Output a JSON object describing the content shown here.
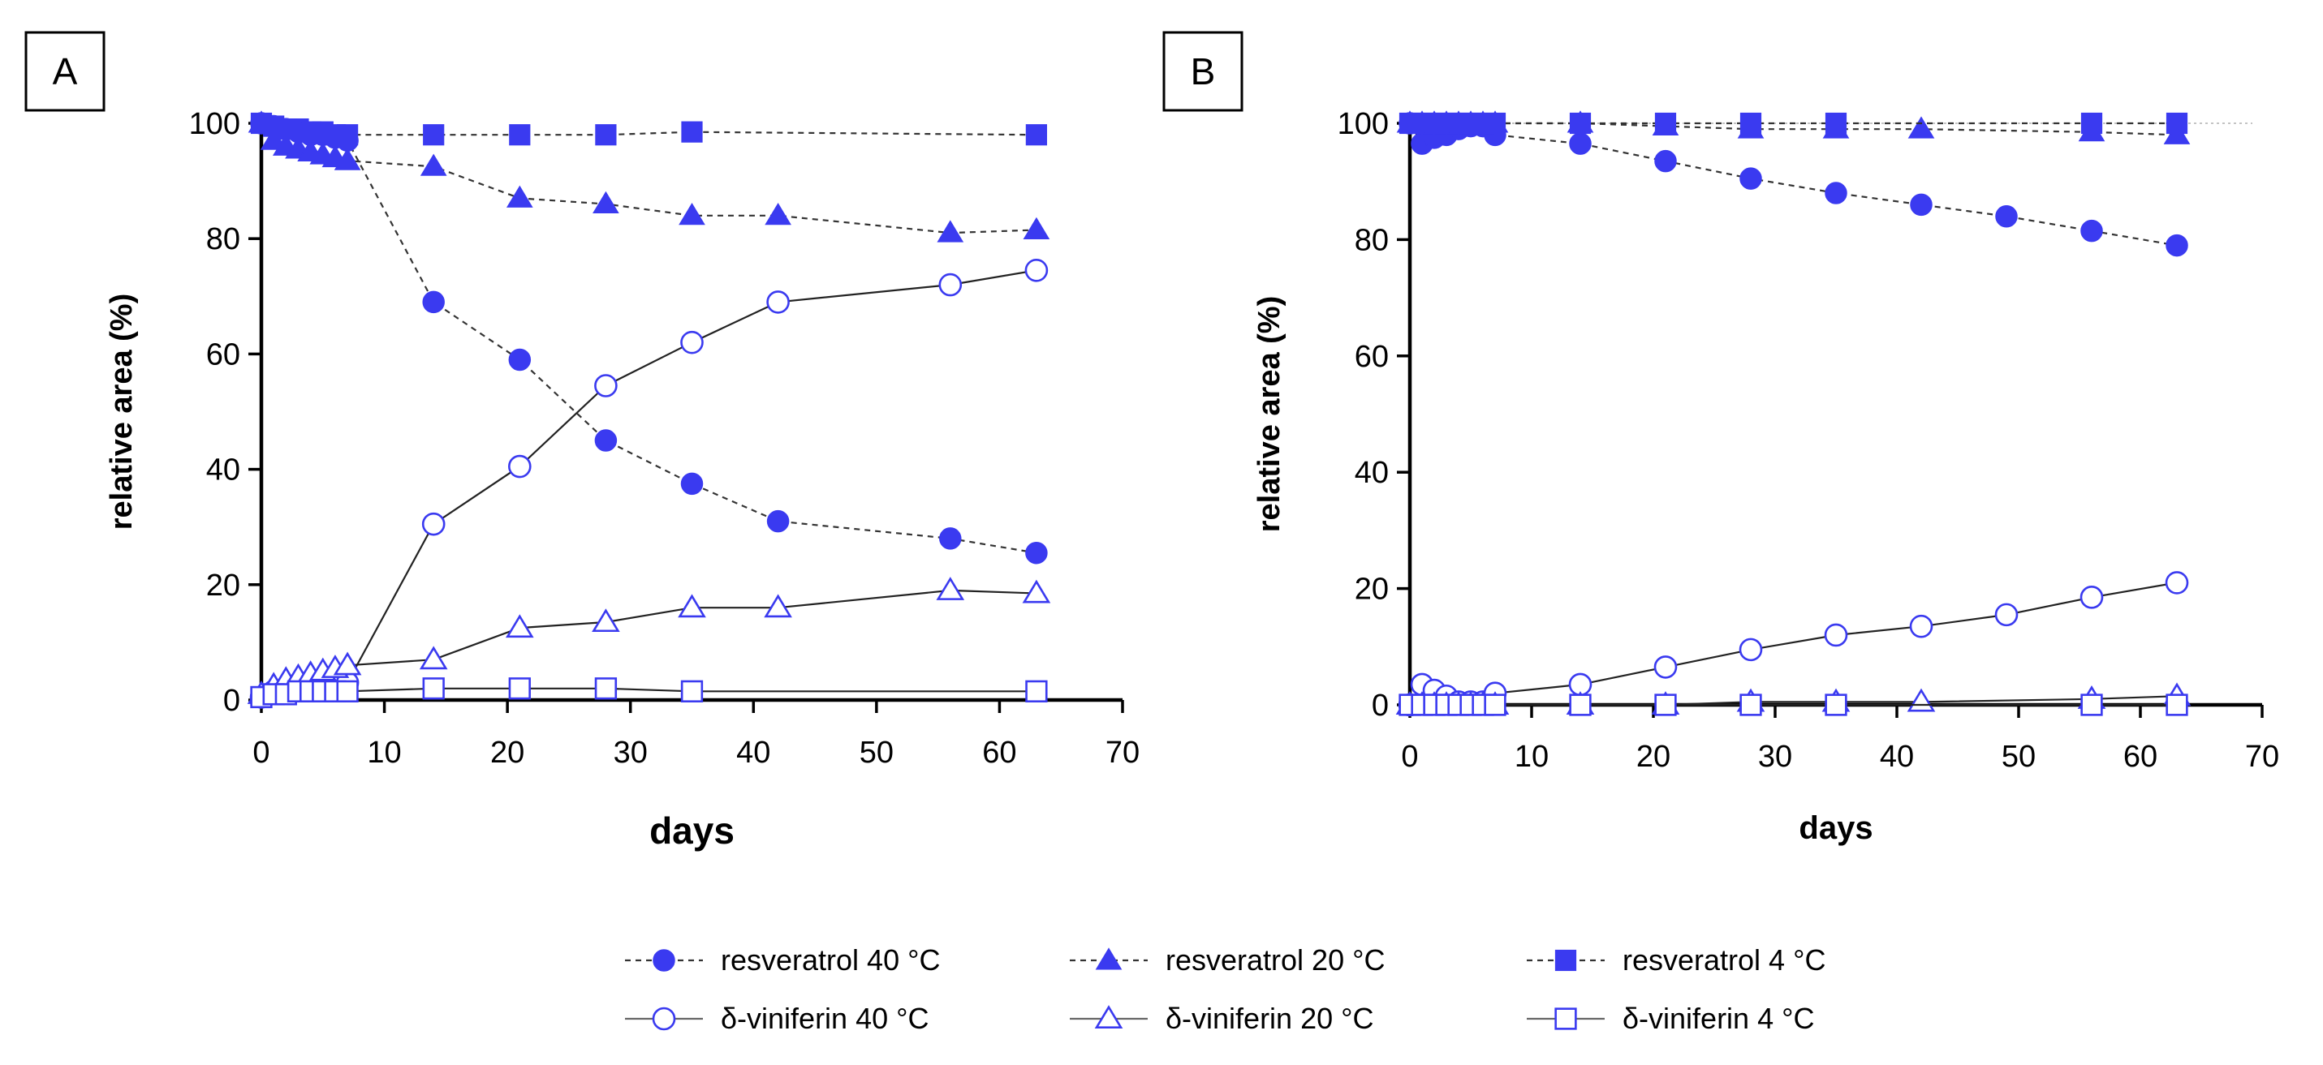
{
  "colors": {
    "series": "#3a3af0",
    "axis": "#000000",
    "resv4_20_guide": "#a0a0a0"
  },
  "legend": {
    "items": [
      {
        "label": "resveratrol 40 °C",
        "marker": "circle",
        "filled": true,
        "dash": true
      },
      {
        "label": "resveratrol 20 °C",
        "marker": "triangle",
        "filled": true,
        "dash": true
      },
      {
        "label": "resveratrol 4 °C",
        "marker": "square",
        "filled": true,
        "dash": true
      },
      {
        "label": "δ-viniferin 40 °C",
        "marker": "circle",
        "filled": false,
        "dash": false
      },
      {
        "label": "δ-viniferin 20 °C",
        "marker": "triangle",
        "filled": false,
        "dash": false
      },
      {
        "label": "δ-viniferin 4 °C",
        "marker": "square",
        "filled": false,
        "dash": false
      }
    ]
  },
  "chart_data": [
    {
      "type": "line",
      "panel_label": "A",
      "xlabel": "days",
      "ylabel": "relative area (%)",
      "xlim": [
        0,
        70
      ],
      "ylim": [
        0,
        100
      ],
      "xticks": [
        "0",
        "10",
        "20",
        "30",
        "40",
        "50",
        "60",
        "70"
      ],
      "yticks": [
        "0",
        "20",
        "40",
        "60",
        "80",
        "100"
      ],
      "series": [
        {
          "name": "resveratrol 40 °C",
          "marker": "circle",
          "filled": true,
          "dash": true,
          "x": [
            0,
            1,
            2,
            3,
            4,
            5,
            6,
            7,
            14,
            21,
            28,
            35,
            42,
            56,
            63
          ],
          "y": [
            100,
            99.5,
            99,
            98.5,
            98,
            98,
            97.5,
            97,
            69,
            59,
            45,
            37.5,
            31,
            28,
            25.5
          ]
        },
        {
          "name": "resveratrol 20 °C",
          "marker": "triangle",
          "filled": true,
          "dash": true,
          "x": [
            0,
            1,
            2,
            3,
            4,
            5,
            6,
            7,
            14,
            21,
            28,
            35,
            42,
            56,
            63
          ],
          "y": [
            100,
            97,
            96,
            95.5,
            95,
            94.5,
            94,
            93.5,
            92.5,
            87,
            86,
            84,
            84,
            81,
            81.5
          ]
        },
        {
          "name": "resveratrol 4 °C",
          "marker": "square",
          "filled": true,
          "dash": true,
          "x": [
            0,
            1,
            2,
            3,
            4,
            5,
            6,
            7,
            14,
            21,
            28,
            35,
            63
          ],
          "y": [
            100,
            99.5,
            99,
            99,
            98.5,
            98.5,
            98,
            98,
            98,
            98,
            98,
            98.5,
            98
          ]
        },
        {
          "name": "δ-viniferin 40 °C",
          "marker": "circle",
          "filled": false,
          "dash": false,
          "x": [
            0,
            1,
            2,
            3,
            4,
            5,
            6,
            7,
            14,
            21,
            28,
            35,
            42,
            56,
            63
          ],
          "y": [
            0.5,
            1.5,
            2,
            2.5,
            3,
            3,
            3,
            3,
            30.5,
            40.5,
            54.5,
            62,
            69,
            72,
            74.5
          ]
        },
        {
          "name": "δ-viniferin 20 °C",
          "marker": "triangle",
          "filled": false,
          "dash": false,
          "x": [
            0,
            1,
            2,
            3,
            4,
            5,
            6,
            7,
            14,
            21,
            28,
            35,
            42,
            56,
            63
          ],
          "y": [
            1,
            2.5,
            3.5,
            4,
            4.5,
            5,
            5.5,
            6,
            7,
            12.5,
            13.5,
            16,
            16,
            19,
            18.5
          ]
        },
        {
          "name": "δ-viniferin 4 °C",
          "marker": "square",
          "filled": false,
          "dash": false,
          "x": [
            0,
            1,
            2,
            3,
            4,
            5,
            6,
            7,
            14,
            21,
            28,
            35,
            63
          ],
          "y": [
            0.5,
            1,
            1,
            1.5,
            1.5,
            1.5,
            1.5,
            1.5,
            2,
            2,
            2,
            1.5,
            1.5
          ]
        }
      ]
    },
    {
      "type": "line",
      "panel_label": "B",
      "xlabel": "days",
      "ylabel": "relative area (%)",
      "xlim": [
        0,
        70
      ],
      "ylim": [
        0,
        100
      ],
      "xticks": [
        "0",
        "10",
        "20",
        "30",
        "40",
        "50",
        "60",
        "70"
      ],
      "yticks": [
        "0",
        "20",
        "40",
        "60",
        "80",
        "100"
      ],
      "series": [
        {
          "name": "resveratrol 40 °C",
          "marker": "circle",
          "filled": true,
          "dash": true,
          "x": [
            0,
            1,
            2,
            3,
            4,
            5,
            6,
            7,
            14,
            21,
            28,
            35,
            42,
            49,
            56,
            63
          ],
          "y": [
            100,
            96.5,
            97.5,
            98,
            99,
            99.5,
            99.5,
            98,
            96.5,
            93.5,
            90.5,
            88,
            86,
            84,
            81.5,
            79
          ]
        },
        {
          "name": "resveratrol 20 °C",
          "marker": "triangle",
          "filled": true,
          "dash": true,
          "x": [
            0,
            1,
            2,
            3,
            4,
            5,
            6,
            7,
            14,
            21,
            28,
            35,
            42,
            56,
            63
          ],
          "y": [
            100,
            100,
            100,
            100,
            100,
            100,
            100,
            100,
            100,
            99.5,
            99,
            99,
            99,
            98.5,
            98
          ]
        },
        {
          "name": "resveratrol 4 °C",
          "marker": "square",
          "filled": true,
          "dash": true,
          "x": [
            0,
            1,
            2,
            3,
            4,
            5,
            6,
            7,
            14,
            21,
            28,
            35,
            56,
            63
          ],
          "y": [
            100,
            100,
            100,
            100,
            100,
            100,
            100,
            100,
            100,
            100,
            100,
            100,
            100,
            100
          ]
        },
        {
          "name": "δ-viniferin 40 °C",
          "marker": "circle",
          "filled": false,
          "dash": false,
          "x": [
            0,
            1,
            2,
            3,
            4,
            5,
            6,
            7,
            14,
            21,
            28,
            35,
            42,
            49,
            56,
            63
          ],
          "y": [
            0,
            3.5,
            2.5,
            1.5,
            0.5,
            0.5,
            0.5,
            2,
            3.5,
            6.5,
            9.5,
            12,
            13.5,
            15.5,
            18.5,
            21
          ]
        },
        {
          "name": "δ-viniferin 20 °C",
          "marker": "triangle",
          "filled": false,
          "dash": false,
          "x": [
            0,
            1,
            2,
            3,
            4,
            5,
            6,
            7,
            14,
            21,
            28,
            35,
            42,
            56,
            63
          ],
          "y": [
            0,
            0,
            0,
            0,
            0,
            0,
            0,
            0,
            0,
            0,
            0.5,
            0.5,
            0.5,
            1,
            1.5
          ]
        },
        {
          "name": "δ-viniferin 4 °C",
          "marker": "square",
          "filled": false,
          "dash": false,
          "x": [
            0,
            1,
            2,
            3,
            4,
            5,
            6,
            7,
            14,
            21,
            28,
            35,
            56,
            63
          ],
          "y": [
            0,
            0,
            0,
            0,
            0,
            0,
            0,
            0,
            0,
            0,
            0,
            0,
            0,
            0
          ]
        }
      ]
    }
  ]
}
